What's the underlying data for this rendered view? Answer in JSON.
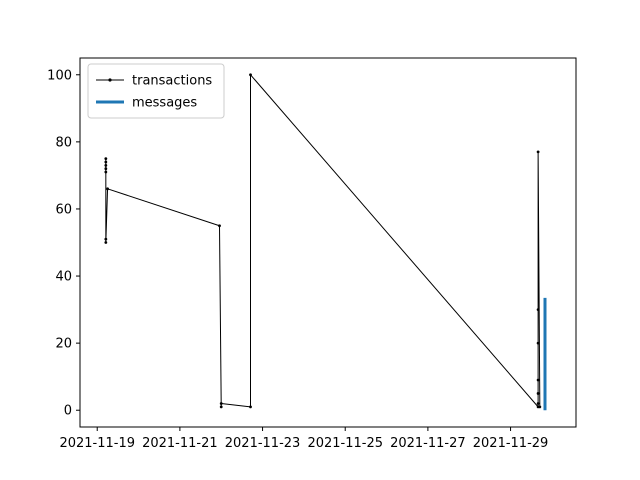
{
  "chart_data": {
    "type": "line",
    "x_type": "date",
    "xlim": [
      "2021-11-18T14:00",
      "2021-11-30T14:00"
    ],
    "ylim": [
      -5,
      105
    ],
    "xticks": [
      "2021-11-19",
      "2021-11-21",
      "2021-11-23",
      "2021-11-25",
      "2021-11-27",
      "2021-11-29"
    ],
    "yticks": [
      0,
      20,
      40,
      60,
      80,
      100
    ],
    "grid": false,
    "legend": {
      "position": "top-left"
    },
    "series": [
      {
        "name": "transactions",
        "color": "#000000",
        "line_width": 1,
        "marker": "point",
        "points": [
          [
            "2021-11-19T05:00",
            75
          ],
          [
            "2021-11-19T05:00",
            74
          ],
          [
            "2021-11-19T05:00",
            73
          ],
          [
            "2021-11-19T05:00",
            72
          ],
          [
            "2021-11-19T05:00",
            71
          ],
          [
            "2021-11-19T05:00",
            51
          ],
          [
            "2021-11-19T05:00",
            50
          ],
          [
            "2021-11-19T06:00",
            66
          ],
          [
            "2021-11-21T23:00",
            55
          ],
          [
            "2021-11-22T00:00",
            1
          ],
          [
            "2021-11-22T00:00",
            2
          ],
          [
            "2021-11-22T17:00",
            1
          ],
          [
            "2021-11-22T17:00",
            100
          ],
          [
            "2021-11-29T16:00",
            1
          ],
          [
            "2021-11-29T16:00",
            30
          ],
          [
            "2021-11-29T16:00",
            20
          ],
          [
            "2021-11-29T16:00",
            9
          ],
          [
            "2021-11-29T16:00",
            5
          ],
          [
            "2021-11-29T16:00",
            2
          ],
          [
            "2021-11-29T16:00",
            77
          ],
          [
            "2021-11-29T17:00",
            1
          ]
        ]
      },
      {
        "name": "messages",
        "color": "#1f77b4",
        "line_width": 3,
        "marker": "none",
        "points": [
          [
            "2021-11-29T20:00",
            0
          ],
          [
            "2021-11-29T20:00",
            33.5
          ]
        ]
      }
    ]
  }
}
